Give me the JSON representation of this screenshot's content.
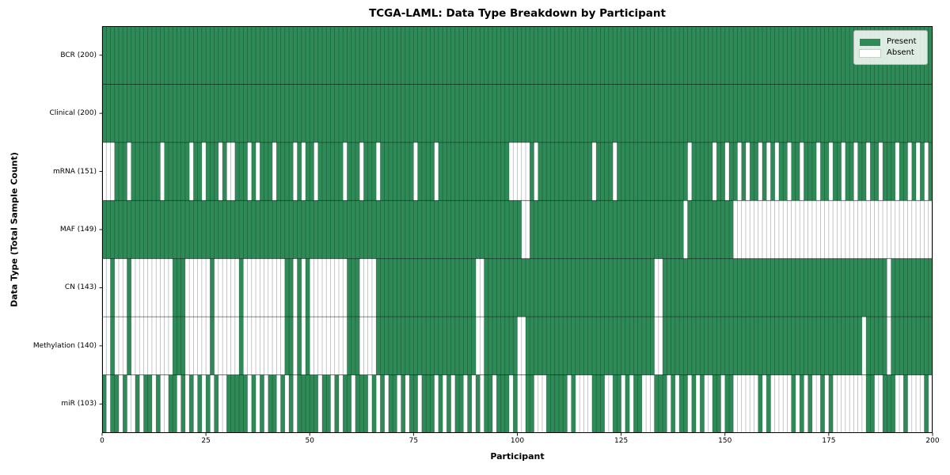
{
  "figure": {
    "title": "TCGA-LAML: Data Type Breakdown by Participant",
    "xlabel": "Participant",
    "ylabel": "Data Type (Total Sample Count)"
  },
  "legend": {
    "items": [
      {
        "label": "Present",
        "color": "#2e8b57"
      },
      {
        "label": "Absent",
        "color": "#ffffff"
      }
    ]
  },
  "chart_data": {
    "type": "heatmap",
    "title": "TCGA-LAML: Data Type Breakdown by Participant",
    "xlabel": "Participant",
    "ylabel": "Data Type (Total Sample Count)",
    "x_range": [
      0,
      200
    ],
    "x_ticks": [
      0,
      25,
      50,
      75,
      100,
      125,
      150,
      175,
      200
    ],
    "n_participants": 200,
    "present_color": "#2e8b57",
    "absent_color": "#ffffff",
    "grid_on": true,
    "legend_position": "upper right",
    "rows": [
      {
        "label": "BCR (200)",
        "name": "BCR",
        "present_count": 200,
        "absent_ranges": []
      },
      {
        "label": "Clinical (200)",
        "name": "Clinical",
        "present_count": 200,
        "absent_ranges": []
      },
      {
        "label": "mRNA (151)",
        "name": "mRNA",
        "present_count": 151,
        "absent_ranges": [
          [
            0,
            2
          ],
          [
            6,
            6
          ],
          [
            14,
            14
          ],
          [
            21,
            21
          ],
          [
            24,
            24
          ],
          [
            28,
            28
          ],
          [
            30,
            31
          ],
          [
            35,
            35
          ],
          [
            37,
            37
          ],
          [
            41,
            41
          ],
          [
            46,
            46
          ],
          [
            48,
            48
          ],
          [
            51,
            51
          ],
          [
            58,
            58
          ],
          [
            62,
            62
          ],
          [
            66,
            66
          ],
          [
            75,
            75
          ],
          [
            80,
            80
          ],
          [
            98,
            102
          ],
          [
            104,
            104
          ],
          [
            118,
            118
          ],
          [
            123,
            123
          ],
          [
            141,
            141
          ],
          [
            147,
            147
          ],
          [
            150,
            150
          ],
          [
            153,
            153
          ],
          [
            155,
            155
          ],
          [
            158,
            158
          ],
          [
            160,
            160
          ],
          [
            162,
            162
          ],
          [
            165,
            165
          ],
          [
            168,
            168
          ],
          [
            172,
            172
          ],
          [
            175,
            175
          ],
          [
            178,
            178
          ],
          [
            181,
            181
          ],
          [
            184,
            184
          ],
          [
            187,
            187
          ],
          [
            191,
            191
          ],
          [
            194,
            194
          ],
          [
            196,
            196
          ],
          [
            198,
            198
          ]
        ]
      },
      {
        "label": "MAF (149)",
        "name": "MAF",
        "present_count": 149,
        "absent_ranges": [
          [
            101,
            102
          ],
          [
            140,
            140
          ],
          [
            152,
            199
          ]
        ]
      },
      {
        "label": "CN (143)",
        "name": "CN",
        "present_count": 143,
        "absent_ranges": [
          [
            0,
            1
          ],
          [
            3,
            5
          ],
          [
            7,
            16
          ],
          [
            20,
            25
          ],
          [
            27,
            32
          ],
          [
            34,
            43
          ],
          [
            46,
            46
          ],
          [
            48,
            48
          ],
          [
            50,
            58
          ],
          [
            62,
            65
          ],
          [
            90,
            91
          ],
          [
            133,
            134
          ],
          [
            189,
            189
          ]
        ]
      },
      {
        "label": "Methylation (140)",
        "name": "Methylation",
        "present_count": 140,
        "absent_ranges": [
          [
            0,
            1
          ],
          [
            3,
            5
          ],
          [
            7,
            16
          ],
          [
            20,
            25
          ],
          [
            27,
            32
          ],
          [
            34,
            43
          ],
          [
            46,
            46
          ],
          [
            48,
            48
          ],
          [
            50,
            58
          ],
          [
            62,
            65
          ],
          [
            90,
            91
          ],
          [
            100,
            101
          ],
          [
            133,
            134
          ],
          [
            183,
            183
          ],
          [
            189,
            189
          ]
        ]
      },
      {
        "label": "miR (103)",
        "name": "miR",
        "present_count": 103,
        "absent_ranges": [
          [
            1,
            1
          ],
          [
            4,
            4
          ],
          [
            6,
            7
          ],
          [
            9,
            9
          ],
          [
            12,
            12
          ],
          [
            14,
            15
          ],
          [
            18,
            18
          ],
          [
            20,
            20
          ],
          [
            22,
            22
          ],
          [
            24,
            24
          ],
          [
            26,
            26
          ],
          [
            28,
            29
          ],
          [
            35,
            35
          ],
          [
            37,
            37
          ],
          [
            39,
            39
          ],
          [
            42,
            42
          ],
          [
            44,
            44
          ],
          [
            46,
            46
          ],
          [
            52,
            52
          ],
          [
            55,
            55
          ],
          [
            57,
            57
          ],
          [
            60,
            60
          ],
          [
            64,
            64
          ],
          [
            66,
            66
          ],
          [
            68,
            68
          ],
          [
            71,
            71
          ],
          [
            73,
            73
          ],
          [
            76,
            76
          ],
          [
            80,
            80
          ],
          [
            82,
            82
          ],
          [
            84,
            84
          ],
          [
            87,
            87
          ],
          [
            89,
            89
          ],
          [
            91,
            91
          ],
          [
            94,
            94
          ],
          [
            98,
            98
          ],
          [
            100,
            101
          ],
          [
            104,
            106
          ],
          [
            112,
            112
          ],
          [
            114,
            117
          ],
          [
            121,
            122
          ],
          [
            125,
            125
          ],
          [
            127,
            127
          ],
          [
            130,
            132
          ],
          [
            136,
            136
          ],
          [
            138,
            138
          ],
          [
            141,
            141
          ],
          [
            143,
            143
          ],
          [
            145,
            146
          ],
          [
            149,
            149
          ],
          [
            152,
            157
          ],
          [
            159,
            159
          ],
          [
            161,
            165
          ],
          [
            167,
            167
          ],
          [
            169,
            169
          ],
          [
            171,
            172
          ],
          [
            174,
            174
          ],
          [
            176,
            183
          ],
          [
            186,
            187
          ],
          [
            191,
            192
          ],
          [
            194,
            197
          ],
          [
            199,
            199
          ]
        ]
      }
    ]
  }
}
